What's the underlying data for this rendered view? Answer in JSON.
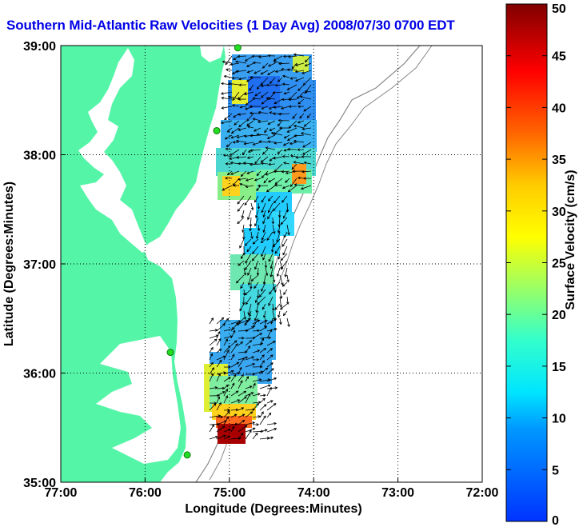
{
  "title": "Southern Mid-Atlantic Raw Velocities (1 Day Avg) 2008/07/30 0700 EDT",
  "map": {
    "xlabel": "Longitude (Degrees:Minutes)",
    "ylabel": "Latitude (Degrees:Minutes)",
    "x_ticks": [
      {
        "value": -77,
        "label": "77:00"
      },
      {
        "value": -76,
        "label": "76:00"
      },
      {
        "value": -75,
        "label": "75:00"
      },
      {
        "value": -74,
        "label": "74:00"
      },
      {
        "value": -73,
        "label": "73:00"
      },
      {
        "value": -72,
        "label": "72:00"
      }
    ],
    "y_ticks": [
      {
        "value": 39,
        "label": "39:00"
      },
      {
        "value": 38,
        "label": "38:00"
      },
      {
        "value": 37,
        "label": "37:00"
      },
      {
        "value": 36,
        "label": "36:00"
      },
      {
        "value": 35,
        "label": "35:00"
      }
    ],
    "xlim": [
      -77,
      -72
    ],
    "ylim": [
      35,
      39
    ],
    "grid": true,
    "land_color": "#55f5a8",
    "stations": [
      {
        "lon": -74.9,
        "lat": 38.98
      },
      {
        "lon": -75.15,
        "lat": 38.22
      },
      {
        "lon": -75.7,
        "lat": 36.19
      },
      {
        "lon": -75.5,
        "lat": 35.25
      }
    ]
  },
  "colorbar": {
    "label": "Surface Velocity (cm/s)",
    "min": 0,
    "max": 50,
    "ticks": [
      "0",
      "5",
      "10",
      "15",
      "20",
      "25",
      "30",
      "35",
      "40",
      "45",
      "50"
    ]
  }
}
